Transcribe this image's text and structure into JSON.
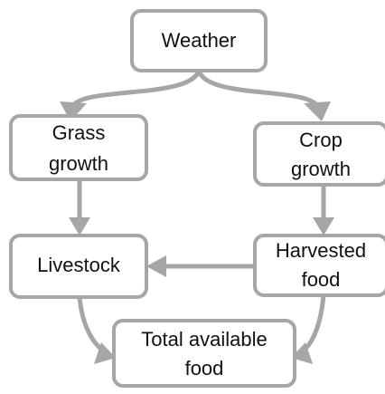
{
  "nodes": [
    {
      "label": [
        "Weather"
      ]
    },
    {
      "label": [
        "Grass",
        "growth"
      ]
    },
    {
      "label": [
        "Crop",
        "growth"
      ]
    },
    {
      "label": [
        "Livestock"
      ]
    },
    {
      "label": [
        "Harvested",
        "food"
      ]
    },
    {
      "label": [
        "Total available",
        "food"
      ]
    }
  ]
}
